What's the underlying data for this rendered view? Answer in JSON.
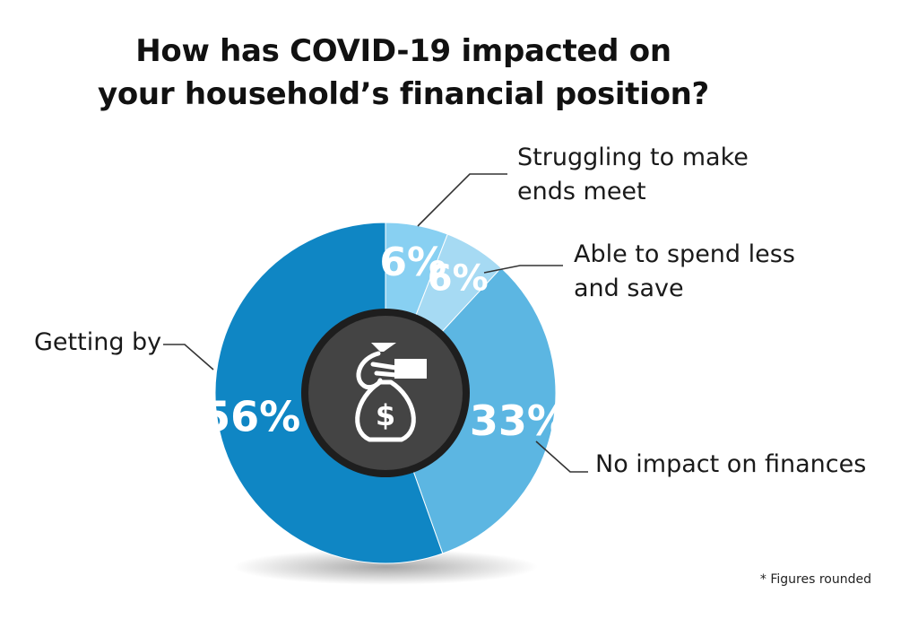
{
  "title_lines": [
    "How has COVID-19 impacted on",
    "your household’s financial position?"
  ],
  "footnote": "* Figures rounded",
  "icon": "money-bag-in-hand-icon",
  "colors": {
    "getting_by": "#0f86c4",
    "no_impact": "#5cb6e2",
    "spend_less": "#a6daf3",
    "struggling": "#88d0f2",
    "center": "#3c3c3c",
    "leader": "#333333"
  },
  "chart_data": {
    "type": "pie",
    "title": "How has COVID-19 impacted on your household’s financial position?",
    "slices": [
      {
        "label": "Struggling to make ends meet",
        "lines": [
          "Struggling to make",
          "ends meet"
        ],
        "value": 6,
        "value_label": "6%"
      },
      {
        "label": "Able to spend less and save",
        "lines": [
          "Able to spend less",
          "and save"
        ],
        "value": 6,
        "value_label": "6%"
      },
      {
        "label": "No impact on finances",
        "lines": [
          "No impact on finances"
        ],
        "value": 33,
        "value_label": "33%"
      },
      {
        "label": "Getting by",
        "lines": [
          "Getting by"
        ],
        "value": 56,
        "value_label": "56%"
      }
    ],
    "donut": true,
    "legend": "none",
    "annotations": "* Figures rounded"
  }
}
